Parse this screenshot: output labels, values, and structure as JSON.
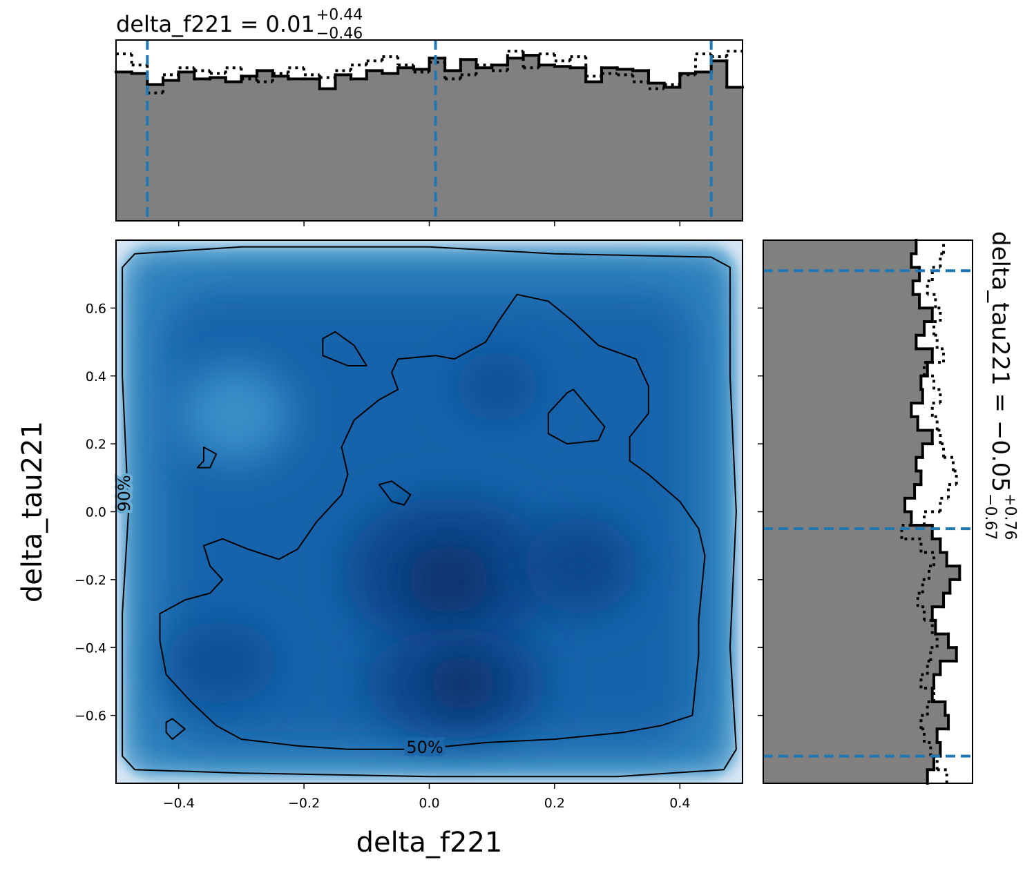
{
  "chart_data": [
    {
      "type": "histogram",
      "orientation": "vertical",
      "title": "delta_f221 = 0.01",
      "title_sup": "+0.44",
      "title_sub": "−0.46",
      "bins": [
        -0.5,
        -0.475,
        -0.45,
        -0.425,
        -0.4,
        -0.375,
        -0.35,
        -0.325,
        -0.3,
        -0.275,
        -0.25,
        -0.225,
        -0.2,
        -0.175,
        -0.15,
        -0.125,
        -0.1,
        -0.075,
        -0.05,
        -0.025,
        0,
        0.025,
        0.05,
        0.075,
        0.1,
        0.125,
        0.15,
        0.175,
        0.2,
        0.225,
        0.25,
        0.275,
        0.3,
        0.325,
        0.35,
        0.375,
        0.4,
        0.425,
        0.45,
        0.475,
        0.5
      ],
      "values": [
        1.07,
        1.06,
        0.98,
        1.01,
        1.07,
        1.02,
        1.03,
        1.0,
        1.04,
        1.08,
        1.04,
        1.02,
        1.02,
        0.95,
        1.05,
        1.02,
        1.08,
        1.06,
        1.1,
        1.09,
        1.17,
        1.08,
        1.16,
        1.1,
        1.12,
        1.17,
        1.19,
        1.12,
        1.11,
        1.1,
        1.0,
        1.1,
        1.09,
        1.08,
        0.99,
        0.96,
        1.06,
        1.07,
        1.15,
        0.96
      ],
      "dotted_values": [
        1.2,
        1.12,
        0.92,
        1.05,
        1.1,
        1.08,
        1.06,
        1.1,
        1.02,
        1.0,
        1.06,
        1.1,
        1.05,
        1.03,
        1.08,
        1.12,
        1.15,
        1.18,
        1.12,
        1.07,
        1.14,
        1.02,
        1.05,
        1.12,
        1.08,
        1.22,
        1.1,
        1.2,
        1.15,
        1.18,
        1.04,
        1.06,
        1.05,
        1.0,
        0.95,
        0.98,
        1.05,
        1.2,
        1.18,
        1.22
      ],
      "xlim": [
        -0.5,
        0.5
      ],
      "ylim": [
        0,
        1.3
      ],
      "xticks": [
        -0.4,
        -0.2,
        0,
        0.2,
        0.4
      ],
      "quantiles": [
        -0.45,
        0.01,
        0.45
      ],
      "color": "#808080",
      "quantile_color": "#1f77b4"
    },
    {
      "type": "density",
      "xlabel": "delta_f221",
      "ylabel": "delta_tau221",
      "xlim": [
        -0.5,
        0.5
      ],
      "ylim": [
        -0.8,
        0.8
      ],
      "xticks": [
        {
          "value": -0.4,
          "label": "−0.4"
        },
        {
          "value": -0.2,
          "label": "−0.2"
        },
        {
          "value": 0,
          "label": "0.0"
        },
        0.2,
        0.4
      ],
      "yticks": [
        {
          "value": -0.6,
          "label": "−0.6"
        },
        {
          "value": -0.4,
          "label": "−0.4"
        },
        {
          "value": -0.2,
          "label": "−0.2"
        },
        {
          "value": 0,
          "label": "0.0"
        },
        0.2,
        0.4,
        0.6
      ],
      "contour_color": "#000000",
      "contours": [
        {
          "label": "50%",
          "pieces": [
            {
              "x": [
                0.14,
                0.19,
                0.23,
                0.27,
                0.33,
                0.35,
                0.35,
                0.32,
                0.32,
                0.35,
                0.4,
                0.43,
                0.44,
                0.43,
                0.43,
                0.42,
                0.37,
                0.31,
                0.2,
                0.09,
                -0.02,
                -0.13,
                -0.21,
                -0.3,
                -0.34,
                -0.38,
                -0.42,
                -0.43,
                -0.43,
                -0.39,
                -0.35,
                -0.33,
                -0.35,
                -0.36,
                -0.33,
                -0.29,
                -0.24,
                -0.21,
                -0.18,
                -0.14,
                -0.13,
                -0.14,
                -0.12,
                -0.08,
                -0.05,
                -0.06,
                -0.05,
                0.01,
                0.04,
                0.09,
                0.11
              ],
              "y": [
                0.64,
                0.62,
                0.56,
                0.49,
                0.45,
                0.37,
                0.29,
                0.22,
                0.15,
                0.11,
                0.03,
                -0.05,
                -0.13,
                -0.32,
                -0.42,
                -0.6,
                -0.63,
                -0.65,
                -0.67,
                -0.68,
                -0.7,
                -0.7,
                -0.69,
                -0.67,
                -0.63,
                -0.56,
                -0.48,
                -0.38,
                -0.3,
                -0.26,
                -0.24,
                -0.2,
                -0.16,
                -0.1,
                -0.08,
                -0.11,
                -0.14,
                -0.11,
                -0.03,
                0.05,
                0.11,
                0.19,
                0.27,
                0.33,
                0.36,
                0.41,
                0.45,
                0.46,
                0.45,
                0.5,
                0.56
              ]
            },
            {
              "x": [
                -0.17,
                -0.15,
                -0.12,
                -0.1,
                -0.13,
                -0.17
              ],
              "y": [
                0.51,
                0.53,
                0.49,
                0.43,
                0.43,
                0.46
              ]
            },
            {
              "x": [
                0.19,
                0.22,
                0.23,
                0.28,
                0.27,
                0.22,
                0.19
              ],
              "y": [
                0.29,
                0.35,
                0.36,
                0.25,
                0.21,
                0.2,
                0.23
              ]
            },
            {
              "x": [
                -0.36,
                -0.36,
                -0.34,
                -0.35,
                -0.37
              ],
              "y": [
                0.15,
                0.19,
                0.17,
                0.13,
                0.13
              ]
            },
            {
              "x": [
                -0.08,
                -0.06,
                -0.03,
                -0.04,
                -0.06
              ],
              "y": [
                0.08,
                0.09,
                0.05,
                0.02,
                0.03
              ]
            },
            {
              "x": [
                -0.42,
                -0.41,
                -0.39,
                -0.41,
                -0.42
              ],
              "y": [
                -0.62,
                -0.61,
                -0.64,
                -0.67,
                -0.65
              ]
            }
          ]
        },
        {
          "label": "90%",
          "pieces": [
            {
              "x": [
                -0.47,
                -0.3,
                0,
                0.2,
                0.45,
                0.48,
                0.48,
                0.49,
                0.48,
                0.49,
                0.47,
                0.3,
                0,
                -0.3,
                -0.47,
                -0.49,
                -0.49,
                -0.48,
                -0.49,
                -0.49
              ],
              "y": [
                0.76,
                0.78,
                0.78,
                0.76,
                0.75,
                0.72,
                0.4,
                0,
                -0.4,
                -0.7,
                -0.76,
                -0.78,
                -0.78,
                -0.77,
                -0.76,
                -0.72,
                -0.3,
                0,
                0.4,
                0.72
              ]
            }
          ]
        }
      ]
    },
    {
      "type": "histogram",
      "orientation": "horizontal",
      "title": "delta_tau221 = −0.05",
      "title_sup": "+0.76",
      "title_sub": "−0.67",
      "bins": [
        -0.8,
        -0.76,
        -0.72,
        -0.68,
        -0.64,
        -0.6,
        -0.56,
        -0.52,
        -0.48,
        -0.44,
        -0.4,
        -0.36,
        -0.32,
        -0.28,
        -0.24,
        -0.2,
        -0.16,
        -0.12,
        -0.08,
        -0.04,
        0,
        0.04,
        0.08,
        0.12,
        0.16,
        0.2,
        0.24,
        0.28,
        0.32,
        0.36,
        0.4,
        0.44,
        0.48,
        0.52,
        0.56,
        0.6,
        0.64,
        0.68,
        0.72,
        0.76,
        0.8
      ],
      "values": [
        1.02,
        1.06,
        1.1,
        1.08,
        1.15,
        1.13,
        1.05,
        1.06,
        1.1,
        1.2,
        1.15,
        1.07,
        1.05,
        1.12,
        1.16,
        1.22,
        1.14,
        1.1,
        1.05,
        0.92,
        0.88,
        0.94,
        0.98,
        0.95,
        0.99,
        1.05,
        0.96,
        0.92,
        0.99,
        0.98,
        1.02,
        1.05,
        0.95,
        1.0,
        1.05,
        0.97,
        0.93,
        0.97,
        0.92,
        0.95
      ],
      "dotted_values": [
        1.14,
        1.08,
        1.04,
        1.0,
        0.98,
        1.02,
        1.06,
        0.98,
        1.02,
        1.04,
        1.08,
        1.05,
        1.0,
        0.96,
        0.99,
        1.03,
        1.06,
        0.98,
        0.86,
        1.0,
        1.1,
        1.15,
        1.2,
        1.18,
        1.12,
        1.1,
        1.08,
        1.05,
        1.1,
        1.06,
        1.0,
        1.12,
        1.08,
        1.06,
        1.1,
        1.07,
        1.02,
        1.05,
        1.1,
        1.12
      ],
      "xlim": [
        0,
        1.3
      ],
      "ylim": [
        -0.8,
        0.8
      ],
      "yticks": [
        -0.6,
        -0.4,
        -0.2,
        0,
        0.2,
        0.4,
        0.6
      ],
      "quantiles": [
        -0.72,
        -0.05,
        0.71
      ],
      "color": "#808080",
      "quantile_color": "#1f77b4"
    }
  ]
}
